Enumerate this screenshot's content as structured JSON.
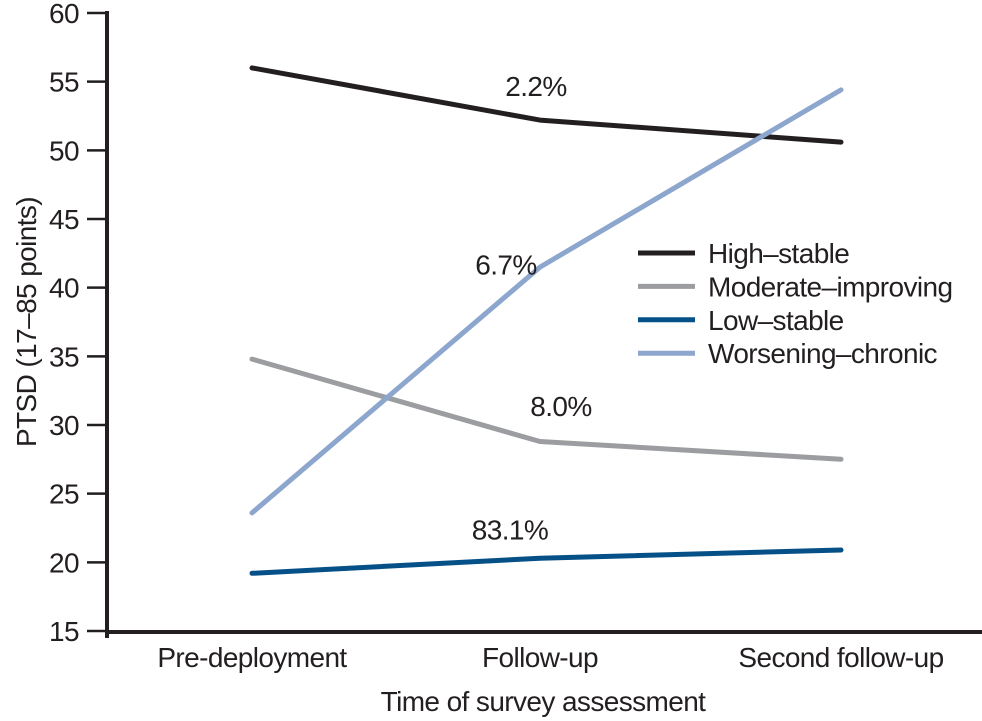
{
  "chart_data": {
    "type": "line",
    "title": "",
    "xlabel": "Time of survey assessment",
    "ylabel": "PTSD (17–85 points)",
    "categories": [
      "Pre-deployment",
      "Follow-up",
      "Second follow-up"
    ],
    "ylim": [
      15,
      60
    ],
    "yticks": [
      60,
      55,
      50,
      45,
      40,
      35,
      30,
      25,
      20,
      15
    ],
    "grid": false,
    "legend_position": "center-right",
    "series": [
      {
        "name": "High–stable",
        "color": "#231f20",
        "values": [
          56.0,
          52.2,
          50.6
        ],
        "percent_label": "2.2%"
      },
      {
        "name": "Moderate–improving",
        "color": "#9b9da0",
        "values": [
          34.8,
          28.8,
          27.5
        ],
        "percent_label": "8.0%"
      },
      {
        "name": "Low–stable",
        "color": "#055087",
        "values": [
          19.2,
          20.3,
          20.9
        ],
        "percent_label": "83.1%"
      },
      {
        "name": "Worsening–chronic",
        "color": "#8ca6cd",
        "values": [
          23.6,
          41.5,
          54.4
        ],
        "percent_label": "6.7%"
      }
    ],
    "annotations": [
      {
        "text": "2.2%",
        "category_index": 1,
        "dx": -4,
        "value": 54.7
      },
      {
        "text": "6.7%",
        "category_index": 1,
        "dx": -34,
        "value": 41.7
      },
      {
        "text": "8.0%",
        "category_index": 1,
        "dx": 21,
        "value": 31.4
      },
      {
        "text": "83.1%",
        "category_index": 1,
        "dx": -30,
        "value": 22.4
      }
    ]
  },
  "colors": {
    "axis": "#231f20",
    "text": "#231f20",
    "background": "#ffffff"
  }
}
